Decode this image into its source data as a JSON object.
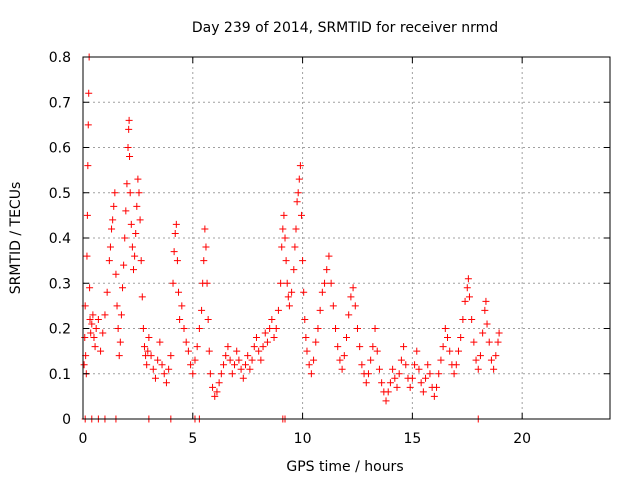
{
  "chart_data": {
    "type": "scatter",
    "title": "Day 239 of 2014, SRMTID for receiver nrmd",
    "xlabel": "GPS time / hours",
    "ylabel": "SRMTID / TECUs",
    "xlim": [
      0,
      24
    ],
    "ylim": [
      0,
      0.8
    ],
    "xticks": [
      0,
      5,
      10,
      15,
      20
    ],
    "yticks": [
      0,
      0.1,
      0.2,
      0.3,
      0.4,
      0.5,
      0.6,
      0.7,
      0.8
    ],
    "grid": true,
    "marker": "plus",
    "marker_color": "#ff0000",
    "series": [
      {
        "name": "SRMTID",
        "points": [
          [
            0.05,
            0.12
          ],
          [
            0.08,
            0.18
          ],
          [
            0.1,
            0.25
          ],
          [
            0.12,
            0.14
          ],
          [
            0.15,
            0.1
          ],
          [
            0.18,
            0.36
          ],
          [
            0.2,
            0.45
          ],
          [
            0.22,
            0.56
          ],
          [
            0.24,
            0.65
          ],
          [
            0.26,
            0.72
          ],
          [
            0.28,
            0.8
          ],
          [
            0.3,
            0.29
          ],
          [
            0.32,
            0.22
          ],
          [
            0.35,
            0.19
          ],
          [
            0.4,
            0.21
          ],
          [
            0.45,
            0.23
          ],
          [
            0.5,
            0.18
          ],
          [
            0.55,
            0.16
          ],
          [
            0.6,
            0.2
          ],
          [
            0.7,
            0.22
          ],
          [
            0.8,
            0.15
          ],
          [
            0.9,
            0.19
          ],
          [
            1.0,
            0.23
          ],
          [
            1.1,
            0.28
          ],
          [
            1.2,
            0.35
          ],
          [
            1.25,
            0.38
          ],
          [
            1.3,
            0.42
          ],
          [
            1.35,
            0.44
          ],
          [
            1.4,
            0.47
          ],
          [
            1.45,
            0.5
          ],
          [
            1.5,
            0.32
          ],
          [
            1.55,
            0.25
          ],
          [
            1.6,
            0.2
          ],
          [
            1.65,
            0.14
          ],
          [
            1.7,
            0.17
          ],
          [
            1.75,
            0.23
          ],
          [
            1.8,
            0.29
          ],
          [
            1.85,
            0.34
          ],
          [
            1.9,
            0.4
          ],
          [
            1.95,
            0.46
          ],
          [
            2.0,
            0.52
          ],
          [
            2.05,
            0.6
          ],
          [
            2.08,
            0.64
          ],
          [
            2.1,
            0.66
          ],
          [
            2.12,
            0.58
          ],
          [
            2.15,
            0.5
          ],
          [
            2.2,
            0.43
          ],
          [
            2.25,
            0.38
          ],
          [
            2.3,
            0.33
          ],
          [
            2.35,
            0.36
          ],
          [
            2.4,
            0.41
          ],
          [
            2.45,
            0.47
          ],
          [
            2.5,
            0.53
          ],
          [
            2.55,
            0.5
          ],
          [
            2.6,
            0.44
          ],
          [
            2.65,
            0.35
          ],
          [
            2.7,
            0.27
          ],
          [
            2.75,
            0.2
          ],
          [
            2.8,
            0.16
          ],
          [
            2.85,
            0.14
          ],
          [
            2.9,
            0.12
          ],
          [
            2.95,
            0.15
          ],
          [
            3.0,
            0.18
          ],
          [
            3.1,
            0.14
          ],
          [
            3.2,
            0.11
          ],
          [
            3.3,
            0.09
          ],
          [
            3.4,
            0.13
          ],
          [
            3.5,
            0.17
          ],
          [
            3.6,
            0.12
          ],
          [
            3.7,
            0.1
          ],
          [
            3.8,
            0.08
          ],
          [
            3.9,
            0.11
          ],
          [
            4.0,
            0.14
          ],
          [
            4.1,
            0.3
          ],
          [
            4.15,
            0.37
          ],
          [
            4.2,
            0.41
          ],
          [
            4.25,
            0.43
          ],
          [
            4.3,
            0.35
          ],
          [
            4.35,
            0.28
          ],
          [
            4.4,
            0.22
          ],
          [
            4.5,
            0.25
          ],
          [
            4.6,
            0.2
          ],
          [
            4.7,
            0.17
          ],
          [
            4.8,
            0.15
          ],
          [
            4.9,
            0.12
          ],
          [
            5.0,
            0.1
          ],
          [
            5.1,
            0.13
          ],
          [
            5.2,
            0.16
          ],
          [
            5.3,
            0.2
          ],
          [
            5.4,
            0.24
          ],
          [
            5.45,
            0.3
          ],
          [
            5.5,
            0.35
          ],
          [
            5.55,
            0.42
          ],
          [
            5.6,
            0.38
          ],
          [
            5.65,
            0.3
          ],
          [
            5.7,
            0.22
          ],
          [
            5.75,
            0.15
          ],
          [
            5.8,
            0.1
          ],
          [
            5.9,
            0.07
          ],
          [
            6.0,
            0.05
          ],
          [
            6.1,
            0.06
          ],
          [
            6.2,
            0.08
          ],
          [
            6.3,
            0.1
          ],
          [
            6.4,
            0.12
          ],
          [
            6.5,
            0.14
          ],
          [
            6.6,
            0.16
          ],
          [
            6.7,
            0.13
          ],
          [
            6.8,
            0.1
          ],
          [
            6.9,
            0.12
          ],
          [
            7.0,
            0.15
          ],
          [
            7.1,
            0.13
          ],
          [
            7.2,
            0.11
          ],
          [
            7.3,
            0.09
          ],
          [
            7.4,
            0.12
          ],
          [
            7.5,
            0.14
          ],
          [
            7.6,
            0.11
          ],
          [
            7.7,
            0.13
          ],
          [
            7.8,
            0.16
          ],
          [
            7.9,
            0.18
          ],
          [
            8.0,
            0.15
          ],
          [
            8.1,
            0.13
          ],
          [
            8.2,
            0.16
          ],
          [
            8.3,
            0.19
          ],
          [
            8.4,
            0.17
          ],
          [
            8.5,
            0.2
          ],
          [
            8.6,
            0.22
          ],
          [
            8.7,
            0.18
          ],
          [
            8.8,
            0.2
          ],
          [
            8.9,
            0.24
          ],
          [
            9.0,
            0.3
          ],
          [
            9.05,
            0.38
          ],
          [
            9.1,
            0.42
          ],
          [
            9.15,
            0.45
          ],
          [
            9.2,
            0.4
          ],
          [
            9.25,
            0.35
          ],
          [
            9.3,
            0.3
          ],
          [
            9.35,
            0.27
          ],
          [
            9.4,
            0.25
          ],
          [
            9.5,
            0.28
          ],
          [
            9.6,
            0.33
          ],
          [
            9.65,
            0.38
          ],
          [
            9.7,
            0.42
          ],
          [
            9.75,
            0.48
          ],
          [
            9.8,
            0.5
          ],
          [
            9.85,
            0.53
          ],
          [
            9.9,
            0.56
          ],
          [
            9.95,
            0.45
          ],
          [
            10.0,
            0.35
          ],
          [
            10.05,
            0.28
          ],
          [
            10.1,
            0.22
          ],
          [
            10.15,
            0.18
          ],
          [
            10.2,
            0.15
          ],
          [
            10.3,
            0.12
          ],
          [
            10.4,
            0.1
          ],
          [
            10.5,
            0.13
          ],
          [
            10.6,
            0.17
          ],
          [
            10.7,
            0.2
          ],
          [
            10.8,
            0.24
          ],
          [
            10.9,
            0.28
          ],
          [
            11.0,
            0.3
          ],
          [
            11.1,
            0.33
          ],
          [
            11.2,
            0.36
          ],
          [
            11.3,
            0.3
          ],
          [
            11.4,
            0.25
          ],
          [
            11.5,
            0.2
          ],
          [
            11.6,
            0.16
          ],
          [
            11.7,
            0.13
          ],
          [
            11.8,
            0.11
          ],
          [
            11.9,
            0.14
          ],
          [
            12.0,
            0.18
          ],
          [
            12.1,
            0.23
          ],
          [
            12.2,
            0.27
          ],
          [
            12.3,
            0.29
          ],
          [
            12.4,
            0.25
          ],
          [
            12.5,
            0.2
          ],
          [
            12.6,
            0.16
          ],
          [
            12.7,
            0.12
          ],
          [
            12.8,
            0.1
          ],
          [
            12.9,
            0.08
          ],
          [
            13.0,
            0.1
          ],
          [
            13.1,
            0.13
          ],
          [
            13.2,
            0.16
          ],
          [
            13.3,
            0.2
          ],
          [
            13.4,
            0.15
          ],
          [
            13.5,
            0.11
          ],
          [
            13.6,
            0.08
          ],
          [
            13.7,
            0.06
          ],
          [
            13.8,
            0.04
          ],
          [
            13.9,
            0.06
          ],
          [
            14.0,
            0.08
          ],
          [
            14.1,
            0.11
          ],
          [
            14.2,
            0.09
          ],
          [
            14.3,
            0.07
          ],
          [
            14.4,
            0.1
          ],
          [
            14.5,
            0.13
          ],
          [
            14.6,
            0.16
          ],
          [
            14.7,
            0.12
          ],
          [
            14.8,
            0.09
          ],
          [
            14.9,
            0.07
          ],
          [
            15.0,
            0.09
          ],
          [
            15.1,
            0.12
          ],
          [
            15.2,
            0.15
          ],
          [
            15.3,
            0.11
          ],
          [
            15.4,
            0.08
          ],
          [
            15.5,
            0.06
          ],
          [
            15.6,
            0.09
          ],
          [
            15.7,
            0.12
          ],
          [
            15.8,
            0.1
          ],
          [
            15.9,
            0.07
          ],
          [
            16.0,
            0.05
          ],
          [
            16.1,
            0.07
          ],
          [
            16.2,
            0.1
          ],
          [
            16.3,
            0.13
          ],
          [
            16.4,
            0.16
          ],
          [
            16.5,
            0.2
          ],
          [
            16.6,
            0.18
          ],
          [
            16.7,
            0.15
          ],
          [
            16.8,
            0.12
          ],
          [
            16.9,
            0.1
          ],
          [
            17.0,
            0.12
          ],
          [
            17.1,
            0.15
          ],
          [
            17.2,
            0.18
          ],
          [
            17.3,
            0.22
          ],
          [
            17.4,
            0.26
          ],
          [
            17.5,
            0.29
          ],
          [
            17.55,
            0.31
          ],
          [
            17.6,
            0.27
          ],
          [
            17.7,
            0.22
          ],
          [
            17.8,
            0.17
          ],
          [
            17.9,
            0.13
          ],
          [
            18.0,
            0.11
          ],
          [
            18.1,
            0.14
          ],
          [
            18.2,
            0.19
          ],
          [
            18.3,
            0.24
          ],
          [
            18.35,
            0.26
          ],
          [
            18.4,
            0.21
          ],
          [
            18.5,
            0.17
          ],
          [
            18.6,
            0.13
          ],
          [
            18.7,
            0.11
          ],
          [
            18.8,
            0.14
          ],
          [
            18.9,
            0.17
          ],
          [
            18.95,
            0.19
          ],
          [
            0.1,
            0.0
          ],
          [
            0.4,
            0.0
          ],
          [
            0.7,
            0.0
          ],
          [
            1.0,
            0.0
          ],
          [
            1.5,
            0.0
          ],
          [
            3.0,
            0.0
          ],
          [
            4.0,
            0.0
          ],
          [
            5.1,
            0.0
          ],
          [
            5.3,
            0.0
          ],
          [
            9.1,
            0.0
          ],
          [
            9.2,
            0.0
          ],
          [
            18.0,
            0.0
          ]
        ]
      }
    ]
  }
}
